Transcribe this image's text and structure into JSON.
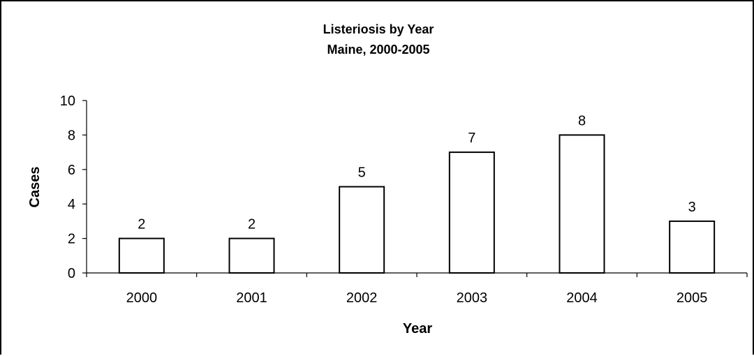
{
  "chart_data": {
    "type": "bar",
    "title": "Listeriosis by Year",
    "subtitle": "Maine, 2000-2005",
    "xlabel": "Year",
    "ylabel": "Cases",
    "categories": [
      "2000",
      "2001",
      "2002",
      "2003",
      "2004",
      "2005"
    ],
    "values": [
      2,
      2,
      5,
      7,
      8,
      3
    ],
    "ylim": [
      0,
      10
    ],
    "yticks": [
      0,
      2,
      4,
      6,
      8,
      10
    ],
    "grid": false,
    "legend": "none",
    "bar_fill": "#ffffff",
    "bar_stroke": "#000000"
  }
}
